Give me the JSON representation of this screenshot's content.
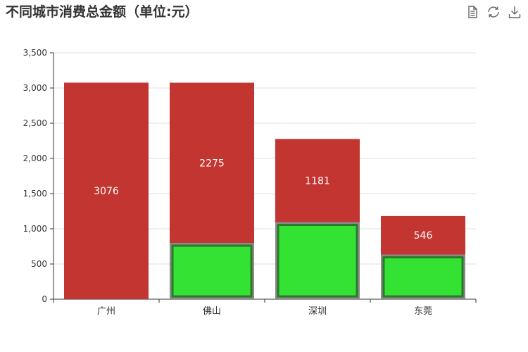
{
  "toolbox": {
    "items": [
      {
        "name": "data-view-icon"
      },
      {
        "name": "restore-icon"
      },
      {
        "name": "save-image-icon"
      }
    ]
  },
  "chart_data": {
    "type": "bar",
    "title": "不同城市消费总金额（单位:元）",
    "xlabel": "",
    "ylabel": "",
    "categories": [
      "广州",
      "佛山",
      "深圳",
      "东莞"
    ],
    "ylim": [
      0,
      3500
    ],
    "yticks": [
      0,
      500,
      1000,
      1500,
      2000,
      2500,
      3000,
      3500
    ],
    "ytick_labels": [
      "0",
      "500",
      "1,000",
      "1,500",
      "2,000",
      "2,500",
      "3,000",
      "3,500"
    ],
    "grid": true,
    "stacked": true,
    "series": [
      {
        "values": [
          0,
          800,
          1095,
          635
        ],
        "color": "#33e233",
        "border": "#2b7a2b"
      },
      {
        "values": [
          3076,
          2275,
          1181,
          546
        ],
        "color": "#c23531",
        "labels": [
          "3076",
          "2275",
          "1181",
          "546"
        ]
      }
    ]
  }
}
